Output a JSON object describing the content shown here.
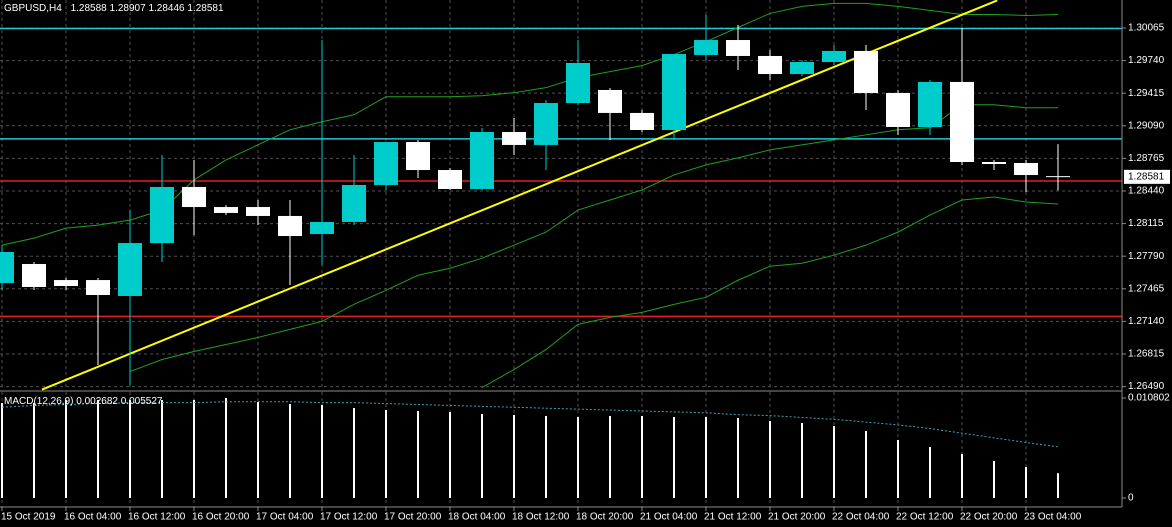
{
  "chart_data": [
    {
      "type": "candlestick",
      "title": "GBPUSD,H4",
      "categories": [
        "15 Oct 2019",
        null,
        "16 Oct 04:00",
        null,
        "16 Oct 12:00",
        null,
        "16 Oct 20:00",
        null,
        "17 Oct 04:00",
        null,
        "17 Oct 12:00",
        null,
        "17 Oct 20:00",
        null,
        "18 Oct 04:00",
        null,
        "18 Oct 12:00",
        null,
        "18 Oct 20:00",
        null,
        "21 Oct 04:00",
        null,
        "21 Oct 12:00",
        null,
        "21 Oct 20:00",
        null,
        "22 Oct 04:00",
        null,
        "22 Oct 12:00",
        null,
        "22 Oct 20:00",
        null,
        "23 Oct 04:00",
        null
      ],
      "open": [
        1.27523,
        1.27712,
        1.27552,
        1.27552,
        1.27393,
        1.27921,
        1.2848,
        1.2828,
        1.2828,
        1.28191,
        1.28011,
        1.28131,
        1.285,
        1.28928,
        1.28649,
        1.2846,
        1.29028,
        1.28899,
        1.29317,
        1.29447,
        1.29218,
        1.29048,
        1.29796,
        1.29945,
        1.29786,
        1.29606,
        1.29726,
        1.29836,
        1.29417,
        1.29078,
        1.29527,
        1.28729,
        1.28719,
        1.28588
      ],
      "high": [
        1.27901,
        1.27732,
        1.27572,
        1.27572,
        1.2825,
        1.28799,
        1.28749,
        1.283,
        1.2835,
        1.2835,
        1.29945,
        1.28799,
        1.28928,
        1.28948,
        1.28669,
        1.29068,
        1.29168,
        1.29347,
        1.29945,
        1.29467,
        1.29247,
        1.29806,
        1.30195,
        1.30095,
        1.29846,
        1.29746,
        1.29896,
        1.29896,
        1.29447,
        1.29547,
        1.30065,
        1.28749,
        1.28749,
        1.28907
      ],
      "low": [
        1.27453,
        1.27453,
        1.27453,
        1.26705,
        1.26506,
        1.27732,
        1.28001,
        1.28201,
        1.28101,
        1.27503,
        1.27702,
        1.28101,
        1.2845,
        1.2857,
        1.2845,
        1.2845,
        1.28799,
        1.28649,
        1.29297,
        1.28948,
        1.29028,
        1.28948,
        1.29746,
        1.29646,
        1.29547,
        1.29586,
        1.29696,
        1.29247,
        1.28998,
        1.28998,
        1.28699,
        1.28649,
        1.2843,
        1.28446
      ],
      "close": [
        1.27832,
        1.27483,
        1.27493,
        1.27403,
        1.27921,
        1.2848,
        1.2828,
        1.28221,
        1.28191,
        1.27991,
        1.28131,
        1.285,
        1.28928,
        1.28649,
        1.2846,
        1.29028,
        1.28899,
        1.29317,
        1.29716,
        1.29218,
        1.29048,
        1.29806,
        1.29945,
        1.29786,
        1.29606,
        1.29726,
        1.29836,
        1.29417,
        1.29078,
        1.29527,
        1.28729,
        1.28709,
        1.28599,
        1.28581
      ],
      "up_color": "#00cccc",
      "down_color": "#ffffff",
      "lines": [
        {
          "color": "#1fa01f",
          "values": [
            1.279,
            1.2797,
            1.2807,
            1.281,
            1.2815,
            1.2825,
            1.2855,
            1.2875,
            1.289,
            1.2905,
            1.2913,
            1.292,
            1.2938,
            1.2938,
            1.2938,
            1.2939,
            1.2942,
            1.2947,
            1.2957,
            1.2963,
            1.2969,
            1.298,
            1.2993,
            1.3007,
            1.3021,
            1.3028,
            1.3031,
            1.3031,
            1.3028,
            1.3024,
            1.302,
            1.302,
            1.3019,
            1.302
          ]
        },
        {
          "color": "#1fa01f",
          "values": [
            null,
            null,
            null,
            null,
            1.2664,
            1.2676,
            1.2684,
            1.2691,
            1.2698,
            1.2706,
            1.2714,
            1.2731,
            1.2745,
            1.276,
            1.2767,
            1.2777,
            1.279,
            1.2803,
            1.2825,
            1.2835,
            1.2845,
            1.286,
            1.287,
            1.2877,
            1.2885,
            1.289,
            1.2895,
            1.29,
            1.2905,
            1.2907,
            1.293,
            1.293,
            1.2927,
            1.2927
          ]
        },
        {
          "color": "#1fa01f",
          "values": [
            null,
            null,
            null,
            null,
            null,
            null,
            null,
            null,
            null,
            null,
            null,
            null,
            null,
            null,
            null,
            1.2648,
            1.2666,
            1.2686,
            1.2711,
            1.2718,
            1.2723,
            1.2731,
            1.2738,
            1.2755,
            1.2769,
            1.2772,
            1.278,
            1.279,
            1.2803,
            1.282,
            1.2835,
            1.2838,
            1.2833,
            1.2831
          ]
        }
      ],
      "levels": [
        {
          "value": 1.3006,
          "color": "#22c8d8"
        },
        {
          "value": 1.2896,
          "color": "#22c8d8"
        },
        {
          "value": 1.2854,
          "color": "#e02020"
        },
        {
          "value": 1.2719,
          "color": "#e02020"
        }
      ],
      "trendline": {
        "x": [
          1.25,
          31.1
        ],
        "y": [
          1.2646,
          1.3034
        ],
        "color": "#ffff00"
      },
      "ylim": [
        1.26456,
        1.30344
      ],
      "yticks": [
        1.30065,
        {
          "value": 1.2974,
          "label": "1.29740"
        },
        1.29415,
        {
          "value": 1.2909,
          "label": "1.29090"
        },
        1.28765,
        {
          "value": 1.2844,
          "label": "1.28440"
        },
        1.28115,
        {
          "value": 1.2779,
          "label": "1.27790"
        },
        1.27465,
        {
          "value": 1.2714,
          "label": "1.27140"
        },
        1.26815,
        {
          "value": 1.2649,
          "label": "1.26490"
        }
      ],
      "grid": true
    },
    {
      "type": "bar",
      "title": "MACD(12,26,9)",
      "values": [
        0.01026,
        0.01026,
        0.01059,
        0.01059,
        0.01059,
        0.01059,
        0.01059,
        0.0108,
        0.01037,
        0.01015,
        0.01005,
        0.00972,
        0.00951,
        0.0094,
        0.00929,
        0.00907,
        0.00897,
        0.00886,
        0.00875,
        0.00886,
        0.00886,
        0.00875,
        0.00875,
        0.00864,
        0.00832,
        0.0081,
        0.00778,
        0.00724,
        0.00627,
        0.00551,
        0.00475,
        0.004,
        0.00335,
        0.002682
      ],
      "color": "#ffffff",
      "signal": {
        "color": "#3aa8b0",
        "values": [
          0.0098,
          0.01,
          0.0101,
          0.0102,
          0.0103,
          0.0103,
          0.0103,
          0.0104,
          0.0104,
          0.0104,
          0.0103,
          0.0103,
          0.0102,
          0.0101,
          0.01,
          0.0099,
          0.0098,
          0.0097,
          0.0096,
          0.0095,
          0.0094,
          0.0093,
          0.0092,
          0.009,
          0.0089,
          0.0087,
          0.0085,
          0.0082,
          0.0079,
          0.0075,
          0.007,
          0.0065,
          0.006,
          0.005527
        ]
      },
      "ylim": [
        -0.00097,
        0.01145
      ],
      "yticks": [
        0.010802,
        0
      ]
    }
  ]
}
